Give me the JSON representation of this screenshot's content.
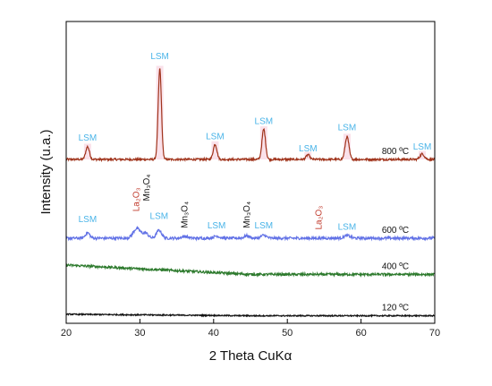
{
  "chart_data": {
    "type": "line",
    "xlabel": "2 Theta CuKα",
    "ylabel": "Intensity (u.a.)",
    "xlim": [
      20,
      70
    ],
    "xticks": [
      "20",
      "30",
      "40",
      "50",
      "60",
      "70"
    ],
    "ylim": [
      0,
      100
    ],
    "grid": false,
    "legend": "none",
    "colors": {
      "lsm": "#4ab4e8",
      "la2o3": "#c0392b",
      "mn3o4": "#111111",
      "highlight": "#f6c9d8"
    },
    "series": [
      {
        "name": "800 ºC",
        "color": "#a0341c",
        "baseline": 54.3,
        "noise": 0.35,
        "peaks": [
          {
            "x": 22.9,
            "h": 4.2,
            "w": 0.25
          },
          {
            "x": 32.7,
            "h": 30.0,
            "w": 0.22
          },
          {
            "x": 40.2,
            "h": 5.0,
            "w": 0.25
          },
          {
            "x": 46.8,
            "h": 10.0,
            "w": 0.24
          },
          {
            "x": 52.8,
            "h": 1.5,
            "w": 0.25
          },
          {
            "x": 58.1,
            "h": 7.5,
            "w": 0.26
          },
          {
            "x": 68.3,
            "h": 1.8,
            "w": 0.3
          }
        ]
      },
      {
        "name": "600 ºC",
        "color": "#6272e6",
        "baseline": 28.2,
        "noise": 0.45,
        "peaks": [
          {
            "x": 22.9,
            "h": 1.8,
            "w": 0.3
          },
          {
            "x": 29.6,
            "h": 3.2,
            "w": 0.5
          },
          {
            "x": 30.8,
            "h": 1.6,
            "w": 0.35
          },
          {
            "x": 32.6,
            "h": 2.6,
            "w": 0.35
          },
          {
            "x": 36.1,
            "h": 0.6,
            "w": 0.4
          },
          {
            "x": 40.4,
            "h": 0.7,
            "w": 0.4
          },
          {
            "x": 44.5,
            "h": 0.8,
            "w": 0.35
          },
          {
            "x": 46.8,
            "h": 1.0,
            "w": 0.35
          },
          {
            "x": 58.1,
            "h": 0.9,
            "w": 0.4
          }
        ]
      },
      {
        "name": "400 ºC",
        "color": "#2d7a2d",
        "baseline": 16.2,
        "noise": 0.4,
        "slope_start": 19.3,
        "peaks": []
      },
      {
        "name": "120 ºC",
        "color": "#111111",
        "baseline": 2.5,
        "noise": 0.2,
        "slope_start": 3.0,
        "peaks": []
      }
    ],
    "annotations": [
      {
        "text": "LSM",
        "phase": "lsm",
        "x": 22.9,
        "y": 60.5,
        "rotate": false
      },
      {
        "text": "LSM",
        "phase": "lsm",
        "x": 32.7,
        "y": 87.5,
        "rotate": false
      },
      {
        "text": "LSM",
        "phase": "lsm",
        "x": 40.2,
        "y": 61.0,
        "rotate": false
      },
      {
        "text": "LSM",
        "phase": "lsm",
        "x": 46.8,
        "y": 66.0,
        "rotate": false
      },
      {
        "text": "LSM",
        "phase": "lsm",
        "x": 52.8,
        "y": 57.0,
        "rotate": false
      },
      {
        "text": "LSM",
        "phase": "lsm",
        "x": 58.1,
        "y": 64.0,
        "rotate": false
      },
      {
        "text": "LSM",
        "phase": "lsm",
        "x": 68.3,
        "y": 57.5,
        "rotate": false
      },
      {
        "text": "LSM",
        "phase": "lsm",
        "x": 22.9,
        "y": 33.5,
        "rotate": false
      },
      {
        "text": "La₂O₃",
        "phase": "la2o3",
        "x": 29.5,
        "y": 37.0,
        "rotate": true
      },
      {
        "text": "Mn₃O₄",
        "phase": "mn3o4",
        "x": 30.9,
        "y": 40.5,
        "rotate": true
      },
      {
        "text": "LSM",
        "phase": "lsm",
        "x": 32.6,
        "y": 34.5,
        "rotate": false
      },
      {
        "text": "Mn₃O₄",
        "phase": "mn3o4",
        "x": 36.1,
        "y": 31.5,
        "rotate": true
      },
      {
        "text": "LSM",
        "phase": "lsm",
        "x": 40.4,
        "y": 31.5,
        "rotate": false
      },
      {
        "text": "Mn₃O₄",
        "phase": "mn3o4",
        "x": 44.5,
        "y": 31.5,
        "rotate": true
      },
      {
        "text": "LSM",
        "phase": "lsm",
        "x": 46.8,
        "y": 31.5,
        "rotate": false
      },
      {
        "text": "La₂O₃",
        "phase": "la2o3",
        "x": 54.3,
        "y": 31.0,
        "rotate": true
      },
      {
        "text": "LSM",
        "phase": "lsm",
        "x": 58.1,
        "y": 31.0,
        "rotate": false
      }
    ]
  }
}
